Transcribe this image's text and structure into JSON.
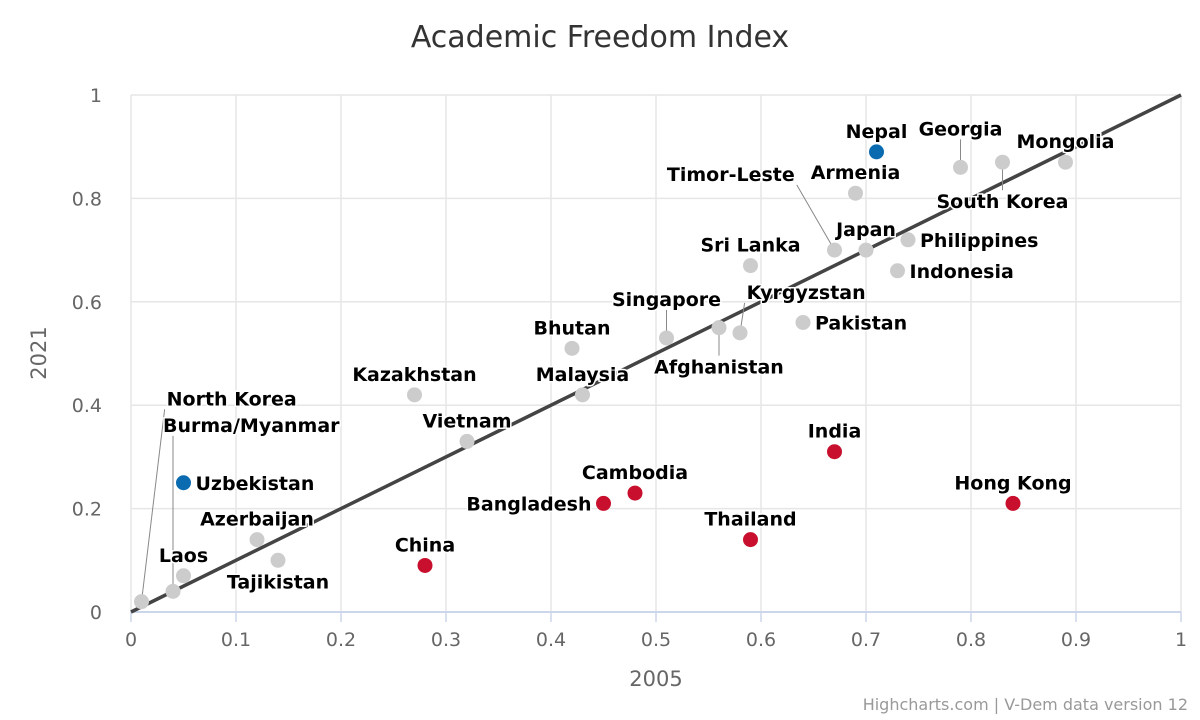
{
  "chart_data": {
    "type": "scatter",
    "title": "Academic Freedom Index",
    "xlabel": "2005",
    "ylabel": "2021",
    "xlim": [
      0,
      1
    ],
    "ylim": [
      0,
      1
    ],
    "xticks": [
      "0",
      "0.1",
      "0.2",
      "0.3",
      "0.4",
      "0.5",
      "0.6",
      "0.7",
      "0.8",
      "0.9",
      "1"
    ],
    "yticks": [
      "0",
      "0.2",
      "0.4",
      "0.6",
      "0.8",
      "1"
    ],
    "grid": true,
    "reference_line": {
      "from": [
        0,
        0
      ],
      "to": [
        1,
        1
      ],
      "color": "#444444"
    },
    "colors": {
      "neutral": "#cccccc",
      "improved": "#0b6bb0",
      "declined": "#c8102e"
    },
    "points": [
      {
        "name": "Nepal",
        "x": 0.71,
        "y": 0.89,
        "group": "improved"
      },
      {
        "name": "Georgia",
        "x": 0.79,
        "y": 0.86,
        "group": "neutral"
      },
      {
        "name": "South Korea",
        "x": 0.83,
        "y": 0.87,
        "group": "neutral"
      },
      {
        "name": "Mongolia",
        "x": 0.89,
        "y": 0.87,
        "group": "neutral"
      },
      {
        "name": "Armenia",
        "x": 0.69,
        "y": 0.81,
        "group": "neutral"
      },
      {
        "name": "Timor-Leste",
        "x": 0.67,
        "y": 0.7,
        "group": "neutral"
      },
      {
        "name": "Japan",
        "x": 0.7,
        "y": 0.7,
        "group": "neutral"
      },
      {
        "name": "Philippines",
        "x": 0.74,
        "y": 0.72,
        "group": "neutral"
      },
      {
        "name": "Indonesia",
        "x": 0.73,
        "y": 0.66,
        "group": "neutral"
      },
      {
        "name": "Sri Lanka",
        "x": 0.59,
        "y": 0.67,
        "group": "neutral"
      },
      {
        "name": "Afghanistan",
        "x": 0.56,
        "y": 0.55,
        "group": "neutral"
      },
      {
        "name": "Kyrgyzstan",
        "x": 0.58,
        "y": 0.54,
        "group": "neutral"
      },
      {
        "name": "Pakistan",
        "x": 0.64,
        "y": 0.56,
        "group": "neutral"
      },
      {
        "name": "Singapore",
        "x": 0.51,
        "y": 0.53,
        "group": "neutral"
      },
      {
        "name": "Bhutan",
        "x": 0.42,
        "y": 0.51,
        "group": "neutral"
      },
      {
        "name": "Malaysia",
        "x": 0.43,
        "y": 0.42,
        "group": "neutral"
      },
      {
        "name": "Kazakhstan",
        "x": 0.27,
        "y": 0.42,
        "group": "neutral"
      },
      {
        "name": "Vietnam",
        "x": 0.32,
        "y": 0.33,
        "group": "neutral"
      },
      {
        "name": "India",
        "x": 0.67,
        "y": 0.31,
        "group": "declined"
      },
      {
        "name": "Uzbekistan",
        "x": 0.05,
        "y": 0.25,
        "group": "improved"
      },
      {
        "name": "Cambodia",
        "x": 0.48,
        "y": 0.23,
        "group": "declined"
      },
      {
        "name": "Bangladesh",
        "x": 0.45,
        "y": 0.21,
        "group": "declined"
      },
      {
        "name": "Hong Kong",
        "x": 0.84,
        "y": 0.21,
        "group": "declined"
      },
      {
        "name": "Thailand",
        "x": 0.59,
        "y": 0.14,
        "group": "declined"
      },
      {
        "name": "China",
        "x": 0.28,
        "y": 0.09,
        "group": "declined"
      },
      {
        "name": "Azerbaijan",
        "x": 0.12,
        "y": 0.14,
        "group": "neutral"
      },
      {
        "name": "Tajikistan",
        "x": 0.14,
        "y": 0.1,
        "group": "neutral"
      },
      {
        "name": "Laos",
        "x": 0.05,
        "y": 0.07,
        "group": "neutral"
      },
      {
        "name": "Burma/Myanmar",
        "x": 0.04,
        "y": 0.04,
        "group": "neutral"
      },
      {
        "name": "North Korea",
        "x": 0.01,
        "y": 0.02,
        "group": "neutral"
      }
    ]
  },
  "credits": "Highcharts.com | V-Dem data version 12"
}
